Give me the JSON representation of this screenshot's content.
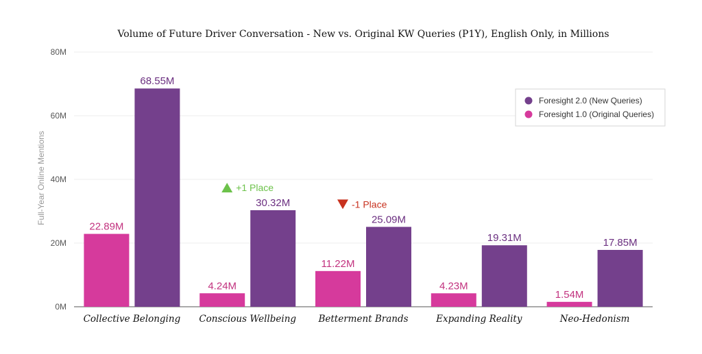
{
  "chart_data": {
    "type": "bar",
    "title": "Volume of Future Driver Conversation - New vs. Original KW Queries (P1Y), English Only, in Millions",
    "ylabel": "Full-Year Online Mentions",
    "xlabel": "",
    "ylim": [
      0,
      80
    ],
    "yticks": [
      {
        "value": 0,
        "label": "0M"
      },
      {
        "value": 20,
        "label": "20M"
      },
      {
        "value": 40,
        "label": "40M"
      },
      {
        "value": 60,
        "label": "60M"
      },
      {
        "value": 80,
        "label": "80M"
      }
    ],
    "grid": true,
    "legend_position": "top-right",
    "categories": [
      "Collective Belonging",
      "Conscious Wellbeing",
      "Betterment Brands",
      "Expanding Reality",
      "Neo-Hedonism"
    ],
    "series": [
      {
        "name": "Foresight 1.0 (Original Queries)",
        "color": "#d63a9c",
        "label_color": "#c2327f",
        "values": [
          22.89,
          4.24,
          11.22,
          4.23,
          1.54
        ],
        "labels": [
          "22.89M",
          "4.24M",
          "11.22M",
          "4.23M",
          "1.54M"
        ]
      },
      {
        "name": "Foresight 2.0 (New Queries)",
        "color": "#74408c",
        "label_color": "#6b2f80",
        "values": [
          68.55,
          30.32,
          25.09,
          19.31,
          17.85
        ],
        "labels": [
          "68.55M",
          "30.32M",
          "25.09M",
          "19.31M",
          "17.85M"
        ]
      }
    ],
    "legend_order": [
      1,
      0
    ],
    "annotations": [
      {
        "category_index": 1,
        "text": "+1 Place",
        "direction": "up",
        "color": "#6cc24a"
      },
      {
        "category_index": 2,
        "text": "-1 Place",
        "direction": "down",
        "color": "#c8321f"
      }
    ]
  }
}
